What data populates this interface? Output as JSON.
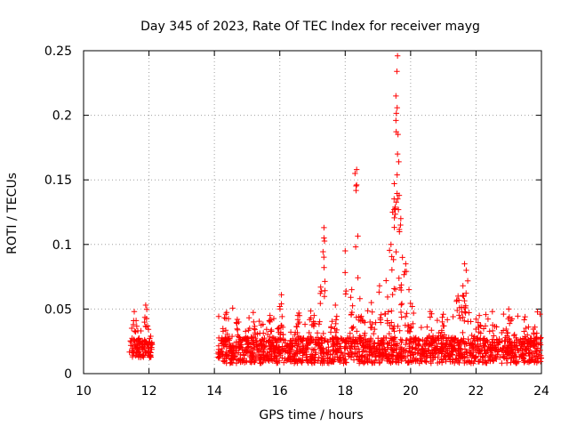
{
  "chart_data": {
    "type": "scatter",
    "title": "Day 345 of 2023, Rate Of TEC Index for receiver mayg",
    "xlabel": "GPS time / hours",
    "ylabel": "ROTI / TECUs",
    "xlim": [
      10,
      24
    ],
    "ylim": [
      0,
      0.25
    ],
    "xticks": [
      10,
      12,
      14,
      16,
      18,
      20,
      22,
      24
    ],
    "xtick_labels": [
      "10",
      "12",
      "14",
      "16",
      "18",
      "20",
      "22",
      "24"
    ],
    "yticks": [
      0,
      0.05,
      0.1,
      0.15,
      0.2,
      0.25
    ],
    "ytick_labels": [
      "0",
      "0.05",
      "0.1",
      "0.15",
      "0.2",
      "0.25"
    ],
    "grid": true,
    "marker": "+",
    "color": "#ff0000",
    "segments": [
      {
        "t_start": 11.4,
        "t_end": 12.1,
        "baseline": 0.02,
        "spread": 0.015
      },
      {
        "t_start": 14.1,
        "t_end": 24.0,
        "baseline": 0.018,
        "spread": 0.02
      }
    ],
    "peaks": [
      {
        "x": 11.55,
        "y": 0.048
      },
      {
        "x": 11.9,
        "y": 0.053
      },
      {
        "x": 14.35,
        "y": 0.046
      },
      {
        "x": 14.7,
        "y": 0.042
      },
      {
        "x": 15.2,
        "y": 0.04
      },
      {
        "x": 15.7,
        "y": 0.045
      },
      {
        "x": 16.05,
        "y": 0.061
      },
      {
        "x": 16.0,
        "y": 0.052
      },
      {
        "x": 16.55,
        "y": 0.045
      },
      {
        "x": 17.05,
        "y": 0.045
      },
      {
        "x": 17.25,
        "y": 0.067
      },
      {
        "x": 17.35,
        "y": 0.105
      },
      {
        "x": 17.35,
        "y": 0.113
      },
      {
        "x": 17.7,
        "y": 0.053
      },
      {
        "x": 18.0,
        "y": 0.095
      },
      {
        "x": 18.2,
        "y": 0.065
      },
      {
        "x": 18.3,
        "y": 0.155
      },
      {
        "x": 18.35,
        "y": 0.158
      },
      {
        "x": 18.45,
        "y": 0.058
      },
      {
        "x": 18.8,
        "y": 0.055
      },
      {
        "x": 19.05,
        "y": 0.068
      },
      {
        "x": 19.25,
        "y": 0.072
      },
      {
        "x": 19.4,
        "y": 0.1
      },
      {
        "x": 19.45,
        "y": 0.125
      },
      {
        "x": 19.5,
        "y": 0.147
      },
      {
        "x": 19.55,
        "y": 0.196
      },
      {
        "x": 19.55,
        "y": 0.215
      },
      {
        "x": 19.58,
        "y": 0.234
      },
      {
        "x": 19.6,
        "y": 0.246
      },
      {
        "x": 19.6,
        "y": 0.17
      },
      {
        "x": 19.65,
        "y": 0.138
      },
      {
        "x": 19.7,
        "y": 0.12
      },
      {
        "x": 19.75,
        "y": 0.09
      },
      {
        "x": 19.85,
        "y": 0.085
      },
      {
        "x": 19.95,
        "y": 0.065
      },
      {
        "x": 20.05,
        "y": 0.052
      },
      {
        "x": 20.6,
        "y": 0.048
      },
      {
        "x": 21.0,
        "y": 0.046
      },
      {
        "x": 21.45,
        "y": 0.06
      },
      {
        "x": 21.65,
        "y": 0.085
      },
      {
        "x": 21.7,
        "y": 0.08
      },
      {
        "x": 21.6,
        "y": 0.068
      },
      {
        "x": 22.1,
        "y": 0.045
      },
      {
        "x": 22.5,
        "y": 0.048
      },
      {
        "x": 23.0,
        "y": 0.05
      },
      {
        "x": 23.5,
        "y": 0.044
      },
      {
        "x": 23.8,
        "y": 0.036
      }
    ]
  }
}
